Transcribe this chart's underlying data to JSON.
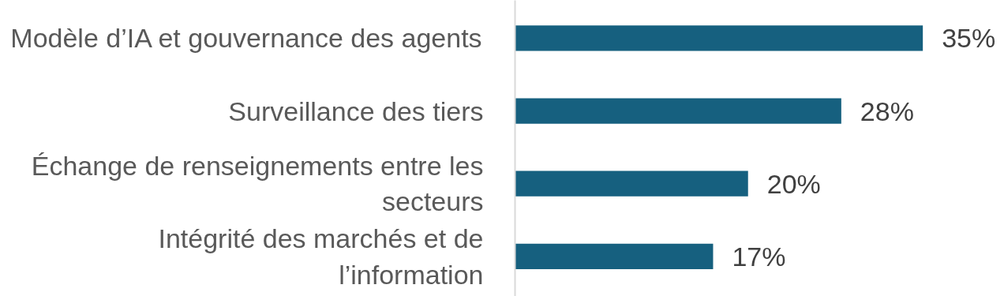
{
  "chart_data": {
    "type": "bar",
    "orientation": "horizontal",
    "categories": [
      "Modèle d’IA et gouvernance des agents",
      "Surveillance des tiers",
      "Échange de renseignements entre les secteurs",
      "Intégrité des marchés et de l’information"
    ],
    "values": [
      35,
      28,
      20,
      17
    ],
    "color": "#16607f",
    "value_labels": [
      "35%",
      "28%",
      "20%",
      "17%"
    ],
    "grid": false
  }
}
